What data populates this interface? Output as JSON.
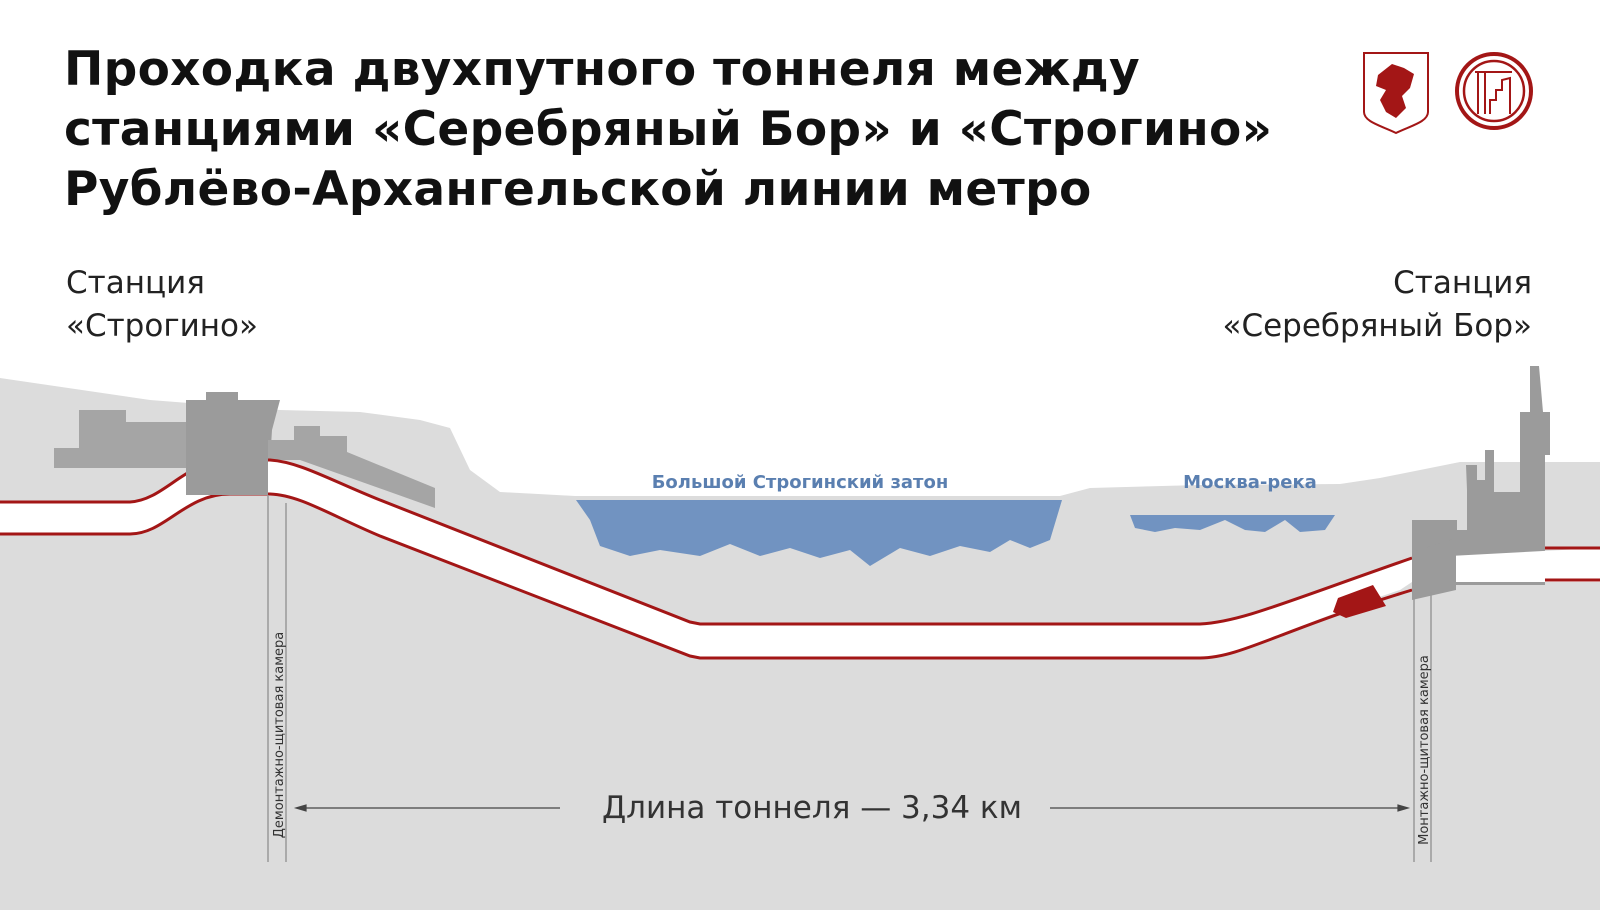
{
  "title": {
    "line1": "Проходка двухпутного тоннеля между",
    "line2": "станциями «Серебряный Бор» и «Строгино»",
    "line3": "Рублёво-Архангельской линии метро"
  },
  "stations": {
    "left": {
      "line1": "Станция",
      "line2": "«Строгино»"
    },
    "right": {
      "line1": "Станция",
      "line2": "«Серебряный Бор»"
    }
  },
  "water": {
    "lake": "Большой Строгинский затон",
    "river": "Москва-река"
  },
  "chambers": {
    "left": "Демонтажно-щитовая камера",
    "right": "Монтажно-щитовая камера"
  },
  "length_label": "Длина тоннеля — 3,34 км",
  "logos": {
    "left": "coat-of-arms-of-moscow",
    "right": "construction-complex-logo"
  },
  "colors": {
    "tunnel": "#a31616",
    "water": "#7193c1",
    "ground": "#dcdcdc",
    "buildings": "#a0a0a0",
    "label_blue": "#5a7fb0"
  }
}
